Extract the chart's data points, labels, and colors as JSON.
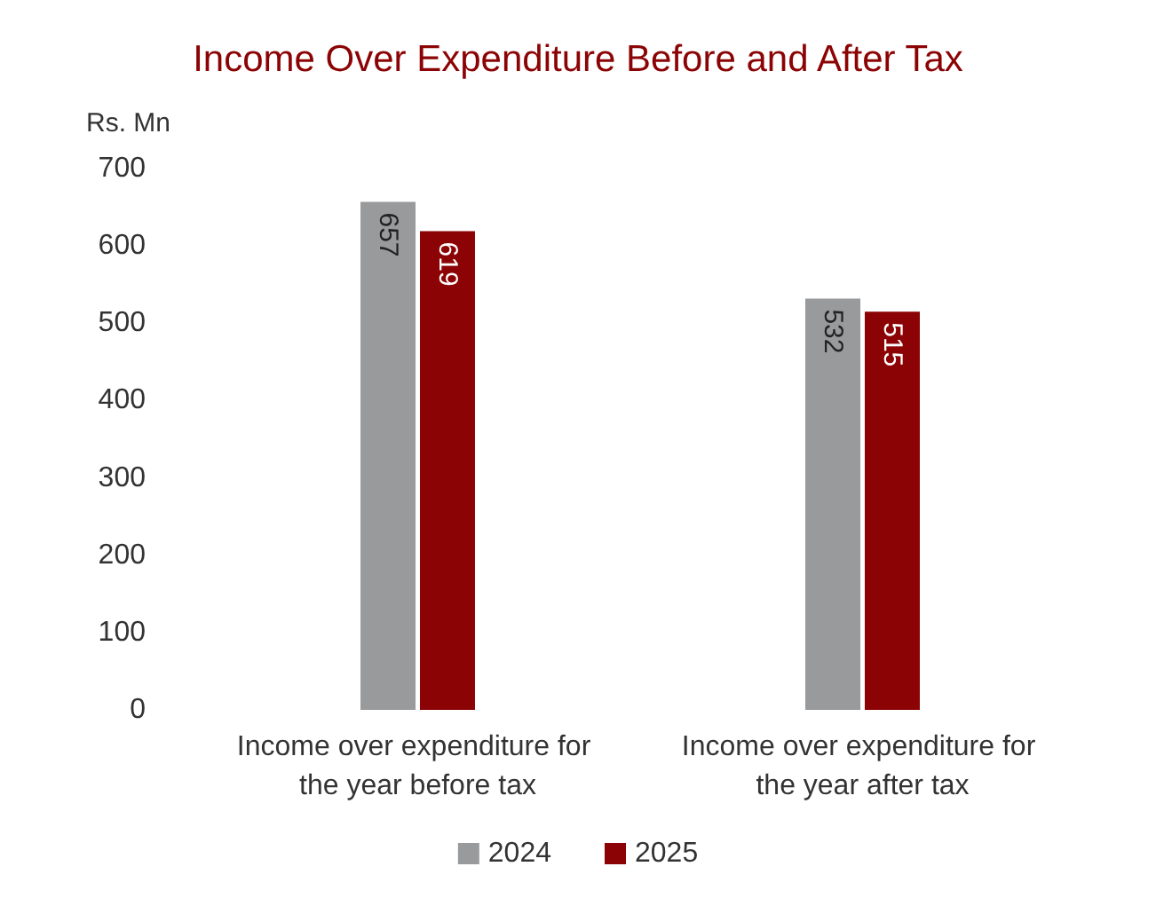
{
  "chart_data": {
    "type": "bar",
    "title": "Income Over Expenditure Before and After Tax",
    "ylabel": "Rs. Mn",
    "categories": [
      "Income over expenditure for the year before tax",
      "Income over expenditure for the year after tax"
    ],
    "series": [
      {
        "name": "2024",
        "color": "#999a9c",
        "values": [
          657,
          532
        ]
      },
      {
        "name": "2025",
        "color": "#8b0304",
        "values": [
          619,
          515
        ]
      }
    ],
    "ylim": [
      0,
      700
    ],
    "yticks": [
      0,
      100,
      200,
      300,
      400,
      500,
      600,
      700
    ],
    "grid": false,
    "legend": "bottom",
    "data_labels": true
  }
}
